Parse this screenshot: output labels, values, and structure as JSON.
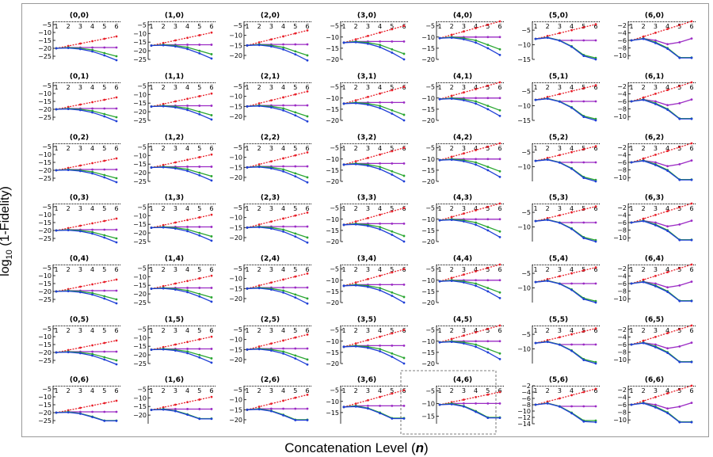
{
  "figure": {
    "ylabel_main": "log",
    "ylabel_sub": "10",
    "ylabel_rest": " (1-Fidelity)",
    "xlabel_text": "Concatenation Level (",
    "xlabel_symbol": "n",
    "xlabel_close": ")",
    "highlight_panel": "(4,6)"
  },
  "colors": {
    "red": "#e8202a",
    "purple": "#9b2bc4",
    "green": "#2aa632",
    "blue": "#1f3fd6",
    "frame": "#9a9a9a"
  },
  "chart_data": {
    "type": "line",
    "grid_rows": 7,
    "grid_cols": 7,
    "x": [
      1,
      2,
      3,
      4,
      5,
      6
    ],
    "x_tick_labels": [
      "1",
      "2",
      "3",
      "4",
      "5",
      "6"
    ],
    "series_colors": [
      "red",
      "purple",
      "green",
      "blue"
    ],
    "curve_families": {
      "A": {
        "red": [
          -20,
          -18.5,
          -17,
          -15.5,
          -14,
          -12.5
        ],
        "purple": [
          -20,
          -19.5,
          -19.5,
          -19.5,
          -19.5,
          -19.5
        ],
        "green": [
          -20,
          -19.5,
          -20,
          -21,
          -23,
          -25
        ],
        "blue": [
          -20,
          -19.8,
          -20.5,
          -22,
          -24.5,
          -27.5
        ]
      },
      "A6": {
        "red": [
          -20,
          -18.5,
          -17,
          -15.5,
          -14,
          -12.5
        ],
        "purple": [
          -20,
          -19.5,
          -19.5,
          -19.5,
          -19.5,
          -19.5
        ],
        "green": [
          -20,
          -19.5,
          -20.5,
          -22.5,
          -25,
          -25
        ],
        "blue": [
          -20,
          -19.8,
          -20.7,
          -22.8,
          -25.2,
          -25.2
        ]
      },
      "B": {
        "red": [
          -17,
          -15.5,
          -14,
          -12.5,
          -11,
          -9.5
        ],
        "purple": [
          -17,
          -16.5,
          -16.5,
          -16.5,
          -16.5,
          -16.5
        ],
        "green": [
          -17,
          -16.5,
          -17,
          -18,
          -20,
          -22
        ],
        "blue": [
          -17,
          -16.8,
          -17.5,
          -19,
          -21.5,
          -24.5
        ]
      },
      "B6": {
        "red": [
          -17,
          -15.5,
          -14,
          -12.5,
          -11,
          -9.5
        ],
        "purple": [
          -17,
          -16.5,
          -16.5,
          -16.5,
          -16.5,
          -16.5
        ],
        "green": [
          -17,
          -16.5,
          -17.5,
          -19.5,
          -22,
          -22
        ],
        "blue": [
          -17,
          -16.8,
          -17.7,
          -19.8,
          -22.2,
          -22.2
        ]
      },
      "C": {
        "red": [
          -15,
          -13.5,
          -12,
          -10.5,
          -9,
          -7.5
        ],
        "purple": [
          -15,
          -14.5,
          -14.5,
          -14.5,
          -14.5,
          -14.5
        ],
        "green": [
          -15,
          -14.5,
          -15,
          -16,
          -18,
          -20
        ],
        "blue": [
          -15,
          -14.8,
          -15.5,
          -17,
          -19.5,
          -22.5
        ]
      },
      "C6": {
        "red": [
          -15,
          -13.5,
          -12,
          -10.5,
          -9,
          -7.5
        ],
        "purple": [
          -15,
          -14.5,
          -14.5,
          -14.5,
          -14.5,
          -14.5
        ],
        "green": [
          -15,
          -14.5,
          -15.5,
          -17.5,
          -20,
          -20
        ],
        "blue": [
          -15,
          -14.8,
          -15.7,
          -17.8,
          -20.2,
          -20.2
        ]
      },
      "D": {
        "red": [
          -12.5,
          -11,
          -9.5,
          -8,
          -6.5,
          -5
        ],
        "purple": [
          -12.5,
          -12,
          -12,
          -12,
          -12,
          -12
        ],
        "green": [
          -12.5,
          -12,
          -12.5,
          -13.5,
          -15.5,
          -17.5
        ],
        "blue": [
          -12.5,
          -12.3,
          -13,
          -14.5,
          -17,
          -20
        ]
      },
      "D6": {
        "red": [
          -12.5,
          -11,
          -9.5,
          -8,
          -6.5,
          -5
        ],
        "purple": [
          -12.5,
          -12,
          -12,
          -12,
          -12,
          -12
        ],
        "green": [
          -12.5,
          -12,
          -13,
          -15,
          -17.5,
          -17.5
        ],
        "blue": [
          -12.5,
          -12.3,
          -13.2,
          -15.3,
          -17.7,
          -17.7
        ]
      },
      "E": {
        "red": [
          -10.5,
          -9,
          -7.5,
          -6,
          -4.5,
          -3
        ],
        "purple": [
          -10.5,
          -10,
          -10,
          -10,
          -10,
          -10
        ],
        "green": [
          -10.5,
          -10,
          -10.5,
          -11.5,
          -13.5,
          -15.5
        ],
        "blue": [
          -10.5,
          -10.3,
          -11,
          -12.5,
          -15,
          -18
        ]
      },
      "E6": {
        "red": [
          -10.5,
          -9.5,
          -8.5,
          -7.5,
          -6.5,
          -5.5
        ],
        "purple": [
          -10.5,
          -10,
          -10,
          -10,
          -10,
          -10
        ],
        "green": [
          -10.5,
          -10,
          -11,
          -13,
          -15.5,
          -15.5
        ],
        "blue": [
          -10.5,
          -10.3,
          -11.2,
          -13.3,
          -15.7,
          -15.7
        ]
      },
      "F": {
        "red": [
          -8,
          -7,
          -6,
          -5,
          -4,
          -3
        ],
        "purple": [
          -8,
          -7.5,
          -8.5,
          -8.5,
          -8.5,
          -8.5
        ],
        "green": [
          -8,
          -7.5,
          -8.5,
          -10.5,
          -13.5,
          -14.5
        ],
        "blue": [
          -8,
          -7.6,
          -8.6,
          -10.7,
          -13.8,
          -15
        ]
      },
      "F6": {
        "red": [
          -8,
          -7,
          -6,
          -5,
          -4,
          -3
        ],
        "purple": [
          -8,
          -7.5,
          -8.5,
          -8.5,
          -8.5,
          -8.5
        ],
        "green": [
          -8,
          -7.5,
          -8.5,
          -10.5,
          -13,
          -13
        ],
        "blue": [
          -8,
          -7.6,
          -8.6,
          -10.7,
          -13.3,
          -13.5
        ]
      },
      "G": {
        "red": [
          -6,
          -5,
          -4,
          -3,
          -2,
          -1
        ],
        "purple": [
          -6,
          -5.5,
          -6,
          -7,
          -6.5,
          -5.5
        ],
        "green": [
          -6,
          -5.5,
          -6.5,
          -8,
          -10.5,
          -10.5
        ],
        "blue": [
          -6,
          -5.6,
          -6.7,
          -8.2,
          -10.6,
          -10.6
        ]
      }
    },
    "columns": [
      {
        "family": "A",
        "ylim": [
          -27,
          -3
        ],
        "y_ticks": [
          -5,
          -10,
          -15,
          -20,
          -25
        ]
      },
      {
        "family": "B",
        "ylim": [
          -25,
          -3
        ],
        "y_ticks": [
          -5,
          -10,
          -15,
          -20,
          -25
        ]
      },
      {
        "family": "C",
        "ylim": [
          -22,
          -3
        ],
        "y_ticks": [
          -5,
          -10,
          -15,
          -20
        ]
      },
      {
        "family": "D",
        "ylim": [
          -20,
          -3
        ],
        "y_ticks": [
          -5,
          -10,
          -15,
          -20
        ]
      },
      {
        "family": "E",
        "ylim": [
          -20,
          -3
        ],
        "y_ticks": [
          -5,
          -10,
          -15,
          -20
        ]
      },
      {
        "family": "F",
        "ylim": [
          -15,
          -2
        ],
        "y_ticks": [
          -5,
          -10,
          -15
        ]
      },
      {
        "family": "G",
        "ylim": [
          -11,
          -1
        ],
        "y_ticks": [
          -2,
          -4,
          -6,
          -8,
          -10
        ]
      }
    ],
    "panels": [
      {
        "title": "(0,0)",
        "family": "A",
        "y_ticks": [
          -5,
          -10,
          -15,
          -20,
          -25
        ],
        "ylim": [
          -27,
          -3
        ]
      },
      {
        "title": "(1,0)",
        "family": "B",
        "y_ticks": [
          -5,
          -10,
          -15,
          -20,
          -25
        ],
        "ylim": [
          -25,
          -3
        ]
      },
      {
        "title": "(2,0)",
        "family": "C",
        "y_ticks": [
          -5,
          -10,
          -15,
          -20
        ],
        "ylim": [
          -22,
          -3
        ]
      },
      {
        "title": "(3,0)",
        "family": "D",
        "y_ticks": [
          -5,
          -10,
          -15,
          -20
        ],
        "ylim": [
          -20,
          -3
        ]
      },
      {
        "title": "(4,0)",
        "family": "E",
        "y_ticks": [
          -5,
          -10,
          -15,
          -20
        ],
        "ylim": [
          -20,
          -3
        ]
      },
      {
        "title": "(5,0)",
        "family": "F",
        "y_ticks": [
          -5,
          -10,
          -15
        ],
        "ylim": [
          -15,
          -2
        ]
      },
      {
        "title": "(6,0)",
        "family": "G",
        "y_ticks": [
          -2,
          -4,
          -6,
          -8,
          -10
        ],
        "ylim": [
          -11,
          -1
        ]
      },
      {
        "title": "(0,1)",
        "family": "A",
        "y_ticks": [
          -5,
          -10,
          -15,
          -20,
          -25
        ],
        "ylim": [
          -27,
          -3
        ]
      },
      {
        "title": "(1,1)",
        "family": "B",
        "y_ticks": [
          -5,
          -10,
          -15,
          -20,
          -25
        ],
        "ylim": [
          -25,
          -3
        ]
      },
      {
        "title": "(2,1)",
        "family": "C",
        "y_ticks": [
          -5,
          -10,
          -15,
          -20
        ],
        "ylim": [
          -22,
          -3
        ]
      },
      {
        "title": "(3,1)",
        "family": "D",
        "y_ticks": [
          -5,
          -10,
          -15,
          -20
        ],
        "ylim": [
          -20,
          -3
        ]
      },
      {
        "title": "(4,1)",
        "family": "E",
        "y_ticks": [
          -5,
          -10,
          -15,
          -20
        ],
        "ylim": [
          -20,
          -3
        ]
      },
      {
        "title": "(5,1)",
        "family": "F",
        "y_ticks": [
          -5,
          -10,
          -15
        ],
        "ylim": [
          -15,
          -2
        ]
      },
      {
        "title": "(6,1)",
        "family": "G",
        "y_ticks": [
          -2,
          -4,
          -6,
          -8,
          -10
        ],
        "ylim": [
          -11,
          -1
        ]
      },
      {
        "title": "(0,2)",
        "family": "A",
        "y_ticks": [
          -5,
          -10,
          -15,
          -20,
          -25
        ],
        "ylim": [
          -27,
          -3
        ]
      },
      {
        "title": "(1,2)",
        "family": "B",
        "y_ticks": [
          -5,
          -10,
          -15,
          -20,
          -25
        ],
        "ylim": [
          -25,
          -3
        ]
      },
      {
        "title": "(2,2)",
        "family": "C",
        "y_ticks": [
          -5,
          -10,
          -15,
          -20
        ],
        "ylim": [
          -22,
          -3
        ]
      },
      {
        "title": "(3,2)",
        "family": "D",
        "y_ticks": [
          -5,
          -10,
          -15,
          -20
        ],
        "ylim": [
          -20,
          -3
        ]
      },
      {
        "title": "(4,2)",
        "family": "E",
        "y_ticks": [
          -5,
          -10,
          -15,
          -20
        ],
        "ylim": [
          -20,
          -3
        ]
      },
      {
        "title": "(5,2)",
        "family": "F",
        "y_ticks": [
          -5,
          -10
        ],
        "ylim": [
          -15,
          -2
        ]
      },
      {
        "title": "(6,2)",
        "family": "G",
        "y_ticks": [
          -2,
          -4,
          -6,
          -8,
          -10
        ],
        "ylim": [
          -11,
          -1
        ]
      },
      {
        "title": "(0,3)",
        "family": "A",
        "y_ticks": [
          -5,
          -10,
          -15,
          -20,
          -25
        ],
        "ylim": [
          -27,
          -3
        ]
      },
      {
        "title": "(1,3)",
        "family": "B",
        "y_ticks": [
          -5,
          -10,
          -15,
          -20,
          -25
        ],
        "ylim": [
          -25,
          -3
        ]
      },
      {
        "title": "(2,3)",
        "family": "C",
        "y_ticks": [
          -5,
          -10,
          -15,
          -20
        ],
        "ylim": [
          -22,
          -3
        ]
      },
      {
        "title": "(3,3)",
        "family": "D",
        "y_ticks": [
          -5,
          -10,
          -15,
          -20
        ],
        "ylim": [
          -20,
          -3
        ]
      },
      {
        "title": "(4,3)",
        "family": "E",
        "y_ticks": [
          -5,
          -10,
          -15,
          -20
        ],
        "ylim": [
          -20,
          -3
        ]
      },
      {
        "title": "(5,3)",
        "family": "F",
        "y_ticks": [
          -5,
          -10
        ],
        "ylim": [
          -15,
          -2
        ]
      },
      {
        "title": "(6,3)",
        "family": "G",
        "y_ticks": [
          -2,
          -4,
          -6,
          -8,
          -10
        ],
        "ylim": [
          -11,
          -1
        ]
      },
      {
        "title": "(0,4)",
        "family": "A",
        "y_ticks": [
          -5,
          -10,
          -15,
          -20,
          -25
        ],
        "ylim": [
          -27,
          -3
        ]
      },
      {
        "title": "(1,4)",
        "family": "B",
        "y_ticks": [
          -5,
          -10,
          -15,
          -20,
          -25
        ],
        "ylim": [
          -25,
          -3
        ]
      },
      {
        "title": "(2,4)",
        "family": "C",
        "y_ticks": [
          -5,
          -10,
          -15,
          -20
        ],
        "ylim": [
          -22,
          -3
        ]
      },
      {
        "title": "(3,4)",
        "family": "D",
        "y_ticks": [
          -5,
          -10,
          -15,
          -20
        ],
        "ylim": [
          -20,
          -3
        ]
      },
      {
        "title": "(4,4)",
        "family": "E",
        "y_ticks": [
          -5,
          -10,
          -15,
          -20
        ],
        "ylim": [
          -20,
          -3
        ]
      },
      {
        "title": "(5,4)",
        "family": "F",
        "y_ticks": [
          -5,
          -10
        ],
        "ylim": [
          -15,
          -2
        ]
      },
      {
        "title": "(6,4)",
        "family": "G",
        "y_ticks": [
          -2,
          -4,
          -6,
          -8,
          -10
        ],
        "ylim": [
          -11,
          -1
        ]
      },
      {
        "title": "(0,5)",
        "family": "A",
        "y_ticks": [
          -5,
          -10,
          -15,
          -20,
          -25
        ],
        "ylim": [
          -27,
          -3
        ]
      },
      {
        "title": "(1,5)",
        "family": "B",
        "y_ticks": [
          -5,
          -10,
          -15,
          -20,
          -25
        ],
        "ylim": [
          -25,
          -3
        ]
      },
      {
        "title": "(2,5)",
        "family": "C",
        "y_ticks": [
          -5,
          -10,
          -15,
          -20
        ],
        "ylim": [
          -22,
          -3
        ]
      },
      {
        "title": "(3,5)",
        "family": "D",
        "y_ticks": [
          -5,
          -10,
          -15,
          -20
        ],
        "ylim": [
          -20,
          -3
        ]
      },
      {
        "title": "(4,5)",
        "family": "E",
        "y_ticks": [
          -5,
          -10,
          -15,
          -20
        ],
        "ylim": [
          -20,
          -3
        ]
      },
      {
        "title": "(5,5)",
        "family": "F",
        "y_ticks": [
          -5,
          -10
        ],
        "ylim": [
          -15,
          -2
        ]
      },
      {
        "title": "(6,5)",
        "family": "G",
        "y_ticks": [
          -2,
          -4,
          -6,
          -8,
          -10
        ],
        "ylim": [
          -11,
          -1
        ]
      },
      {
        "title": "(0,6)",
        "family": "A6",
        "y_ticks": [
          -5,
          -10,
          -15,
          -20,
          -25
        ],
        "ylim": [
          -27,
          -3
        ]
      },
      {
        "title": "(1,6)",
        "family": "B6",
        "y_ticks": [
          -5,
          -10,
          -15,
          -20
        ],
        "ylim": [
          -25,
          -3
        ]
      },
      {
        "title": "(2,6)",
        "family": "C6",
        "y_ticks": [
          -5,
          -10,
          -15,
          -20
        ],
        "ylim": [
          -22,
          -3
        ]
      },
      {
        "title": "(3,6)",
        "family": "D6",
        "y_ticks": [
          -5,
          -10,
          -15
        ],
        "ylim": [
          -20,
          -3
        ]
      },
      {
        "title": "(4,6)",
        "family": "E6",
        "y_ticks": [
          -5,
          -10,
          -15
        ],
        "ylim": [
          -18,
          -3
        ]
      },
      {
        "title": "(5,6)",
        "family": "F6",
        "y_ticks": [
          -2,
          -4,
          -6,
          -8,
          -10,
          -12,
          -14
        ],
        "ylim": [
          -14,
          -2
        ]
      },
      {
        "title": "(6,6)",
        "family": "G",
        "y_ticks": [
          -2,
          -4,
          -6,
          -8,
          -10
        ],
        "ylim": [
          -11,
          -1
        ]
      }
    ]
  }
}
